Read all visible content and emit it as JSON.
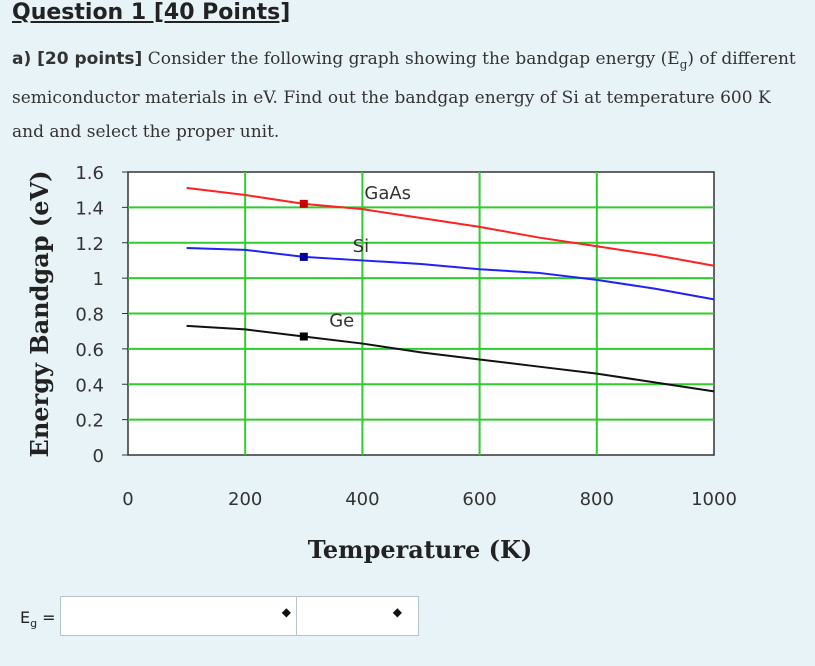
{
  "question": {
    "title": "Question 1 [40 Points]",
    "part_label": "a) [20 points]",
    "text_before": " Consider the following graph showing the bandgap energy (E",
    "subscript": "g",
    "text_after": ") of different semiconductor materials in eV. Find out the bandgap energy of Si at temperature 600 K and and select the proper unit."
  },
  "answer": {
    "symbol": "E",
    "subscript": "g",
    "equals": " =",
    "value_selected": "",
    "unit_selected": ""
  },
  "colors": {
    "grid": "#2ecc2e",
    "gaas": "#ff2020",
    "si": "#2020ff",
    "ge": "#111111",
    "marker_gaas": "#c80000",
    "marker_si": "#0000a0",
    "marker_ge": "#000000"
  },
  "chart_data": {
    "type": "line",
    "xlabel": "Temperature (K)",
    "ylabel": "Energy Bandgap (eV)",
    "xlim": [
      0,
      1000
    ],
    "ylim": [
      0,
      1.6
    ],
    "xticks": [
      "0",
      "200",
      "400",
      "600",
      "800",
      "1000"
    ],
    "yticks": [
      "0",
      "0.2",
      "0.4",
      "0.6",
      "0.8",
      "1",
      "1.2",
      "1.4",
      "1.6"
    ],
    "grid": true,
    "series": [
      {
        "name": "GaAs",
        "x": [
          100,
          200,
          300,
          400,
          500,
          600,
          700,
          800,
          900,
          1000
        ],
        "values": [
          1.51,
          1.47,
          1.42,
          1.39,
          1.34,
          1.29,
          1.23,
          1.18,
          1.13,
          1.07
        ]
      },
      {
        "name": "Si",
        "x": [
          100,
          200,
          300,
          400,
          500,
          600,
          700,
          800,
          900,
          1000
        ],
        "values": [
          1.17,
          1.16,
          1.12,
          1.1,
          1.08,
          1.05,
          1.03,
          0.99,
          0.94,
          0.88
        ]
      },
      {
        "name": "Ge",
        "x": [
          100,
          200,
          300,
          400,
          500,
          600,
          700,
          800,
          900,
          1000
        ],
        "values": [
          0.73,
          0.71,
          0.67,
          0.63,
          0.58,
          0.54,
          0.5,
          0.46,
          0.41,
          0.36
        ]
      }
    ],
    "markers": [
      {
        "series": "GaAs",
        "x": 300,
        "y": 1.42
      },
      {
        "series": "Si",
        "x": 300,
        "y": 1.12
      },
      {
        "series": "Ge",
        "x": 300,
        "y": 0.67
      }
    ],
    "annotations": [
      {
        "text": "GaAs",
        "x": 400,
        "y": 1.47
      },
      {
        "text": "Si",
        "x": 380,
        "y": 1.17
      },
      {
        "text": "Ge",
        "x": 340,
        "y": 0.75
      }
    ]
  }
}
